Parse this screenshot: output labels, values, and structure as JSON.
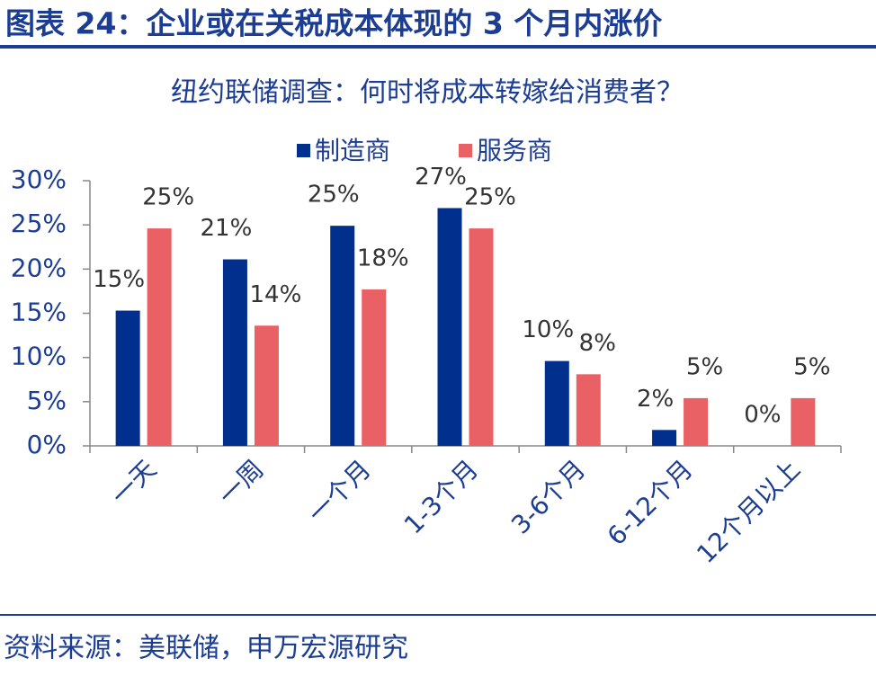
{
  "header": {
    "title": "图表 24：企业或在关税成本体现的 3 个月内涨价"
  },
  "chart_data": {
    "type": "bar",
    "title": "纽约联储调查：何时将成本转嫁给消费者？",
    "categories": [
      "一天",
      "一周",
      "一个月",
      "1-3个月",
      "3-6个月",
      "6-12个月",
      "12个月以上"
    ],
    "series": [
      {
        "name": "制造商",
        "color": "#002f8e",
        "values": [
          15.3,
          21.1,
          24.9,
          26.9,
          9.6,
          1.8,
          0
        ],
        "value_labels": [
          "15%",
          "21%",
          "25%",
          "27%",
          "10%",
          "2%",
          "0%"
        ]
      },
      {
        "name": "服务商",
        "color": "#e96164",
        "values": [
          24.6,
          13.6,
          17.7,
          24.6,
          8.1,
          5.4,
          5.4
        ],
        "value_labels": [
          "25%",
          "14%",
          "18%",
          "25%",
          "8%",
          "5%",
          "5%"
        ]
      }
    ],
    "ylim": [
      0,
      30
    ],
    "yticks": [
      {
        "value": 0,
        "label": "0%"
      },
      {
        "value": 5,
        "label": "5%"
      },
      {
        "value": 10,
        "label": "10%"
      },
      {
        "value": 15,
        "label": "15%"
      },
      {
        "value": 20,
        "label": "20%"
      },
      {
        "value": 25,
        "label": "25%"
      },
      {
        "value": 30,
        "label": "30%"
      }
    ],
    "legend": "top"
  },
  "source": "资料来源：美联储，申万宏源研究"
}
